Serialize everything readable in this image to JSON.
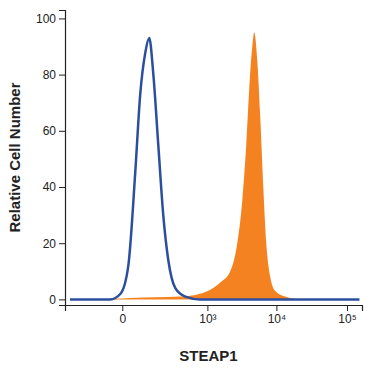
{
  "chart_data": {
    "type": "line",
    "x_label": "STEAP1",
    "y_label": "Relative Cell Number",
    "log": "x",
    "xlim": [
      -365,
      163000
    ],
    "xticks": [
      0,
      {
        "value": 1000,
        "label": "10³"
      },
      {
        "value": 10000,
        "label": "10⁴"
      },
      {
        "value": 100000,
        "label": "10⁵"
      }
    ],
    "ylim": [
      -2,
      103
    ],
    "yticks": [
      0,
      20,
      40,
      60,
      80,
      100
    ],
    "grid": false,
    "series": [
      {
        "type": "area",
        "color": "#f58220",
        "x": [
          -300,
          -100,
          20,
          375,
          780,
          1555,
          2178,
          2754,
          3250,
          3712,
          4100,
          4530,
          4831,
          5340,
          5890,
          6510,
          7180,
          8180,
          9640,
          13360,
          21810,
          150000
        ],
        "values": [
          0,
          0,
          0.5,
          1,
          2,
          6,
          10,
          20,
          35,
          55,
          75,
          90,
          95,
          85,
          65,
          40,
          20,
          8,
          3,
          1,
          0,
          0
        ]
      },
      {
        "type": "line",
        "color": "#2b4f9e",
        "x": [
          -300,
          -32,
          -4,
          14.5,
          35,
          53,
          75,
          94,
          117,
          149,
          187,
          232,
          309,
          453,
          777,
          150000
        ],
        "values": [
          0,
          0,
          2,
          12,
          45,
          73,
          88,
          93,
          80,
          55,
          30,
          14,
          4,
          1,
          0,
          0
        ]
      }
    ]
  }
}
